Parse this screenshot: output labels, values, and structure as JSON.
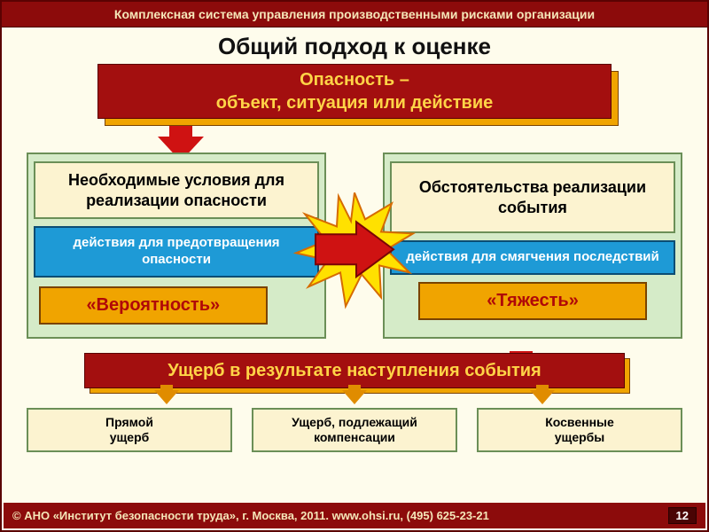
{
  "header": "Комплексная система управления производственными рисками организации",
  "title": "Общий подход к оценке",
  "top_banner": {
    "line1": "Опасность –",
    "line2": "объект, ситуация  или действие"
  },
  "left": {
    "condition": "Необходимые условия для реализации опасности",
    "action": "действия для предотвращения опасности",
    "tag": "«Вероятность»"
  },
  "right": {
    "condition": "Обстоятельства реализации события",
    "action": "действия для смягчения последствий",
    "tag": "«Тяжесть»"
  },
  "result": "Ущерб в результате наступления события",
  "bottom": [
    "Прямой\nущерб",
    "Ущерб, подлежащий\nкомпенсации",
    "Косвенные\nущербы"
  ],
  "footer": "© АНО «Институт безопасности труда», г. Москва, 2011. www.ohsi.ru, (495) 625-23-21",
  "page": "12",
  "colors": {
    "dark_red": "#8c0b0b",
    "banner_red": "#a30f0f",
    "arrow_red": "#cf1212",
    "orange": "#f0a400",
    "mini_arrow": "#e08c00",
    "blue": "#1e9ad6",
    "green_bg": "#d5ebc8",
    "green_border": "#6b8f57",
    "cream_box": "#fcf3d0",
    "page_bg": "#fefcec",
    "gold_text": "#ffd447",
    "tag_text": "#b00808",
    "star_fill": "#ffe100",
    "star_stroke": "#d66b00"
  }
}
